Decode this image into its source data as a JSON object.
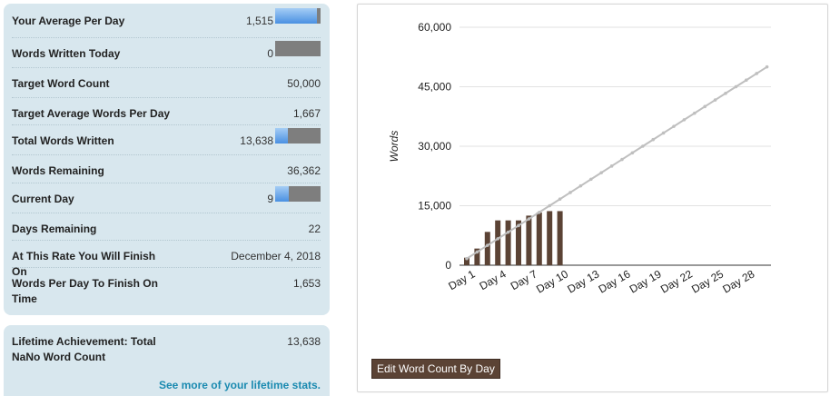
{
  "stats": {
    "avg_per_day": {
      "label": "Your Average Per Day",
      "value": "1,515",
      "progress": 0.91
    },
    "written_today": {
      "label": "Words Written Today",
      "value": "0",
      "progress": 0.0
    },
    "target_count": {
      "label": "Target Word Count",
      "value": "50,000"
    },
    "target_avg": {
      "label": "Target Average Words Per Day",
      "value": "1,667"
    },
    "total_written": {
      "label": "Total Words Written",
      "value": "13,638",
      "progress": 0.27
    },
    "remaining": {
      "label": "Words Remaining",
      "value": "36,362"
    },
    "current_day": {
      "label": "Current Day",
      "value": "9",
      "progress": 0.3
    },
    "days_remaining": {
      "label": "Days Remaining",
      "value": "22"
    },
    "finish_on": {
      "label": "At This Rate You Will Finish On",
      "value": "December 4, 2018"
    },
    "per_day_to_finish": {
      "label": "Words Per Day To Finish On Time",
      "value": "1,653"
    }
  },
  "lifetime": {
    "label": "Lifetime Achievement: Total NaNo Word Count",
    "value": "13,638",
    "link": "See more of your lifetime stats."
  },
  "chart": {
    "edit_button": "Edit Word Count By Day",
    "colors": {
      "bar": "#5b4335",
      "target_line": "#bfbfbf",
      "grid": "#e2e2e2",
      "bar_button": "#5b4335",
      "link": "#1a8ab0",
      "progress_fill": "#4a90e2"
    }
  },
  "chart_data": {
    "type": "bar",
    "ylabel": "Words",
    "ylim": [
      0,
      60000
    ],
    "yticks": [
      "0",
      "15,000",
      "30,000",
      "45,000",
      "60,000"
    ],
    "ytick_values": [
      0,
      15000,
      30000,
      45000,
      60000
    ],
    "xtick_labels": [
      "Day 1",
      "Day 4",
      "Day 7",
      "Day 10",
      "Day 13",
      "Day 16",
      "Day 19",
      "Day 22",
      "Day 25",
      "Day 28"
    ],
    "xtick_days": [
      1,
      4,
      7,
      10,
      13,
      16,
      19,
      22,
      25,
      28
    ],
    "days": 30,
    "series": [
      {
        "values": [
          1900,
          4200,
          8400,
          11300,
          11300,
          11300,
          12500,
          13300,
          13638,
          13638,
          0,
          0,
          0,
          0,
          0,
          0,
          0,
          0,
          0,
          0,
          0,
          0,
          0,
          0,
          0,
          0,
          0,
          0,
          0,
          0
        ]
      },
      {
        "values": [
          1667,
          3333,
          5000,
          6667,
          8333,
          10000,
          11667,
          13333,
          15000,
          16667,
          18333,
          20000,
          21667,
          23333,
          25000,
          26667,
          28333,
          30000,
          31667,
          33333,
          35000,
          36667,
          38333,
          40000,
          41667,
          43333,
          45000,
          46667,
          48333,
          50000
        ]
      }
    ]
  }
}
